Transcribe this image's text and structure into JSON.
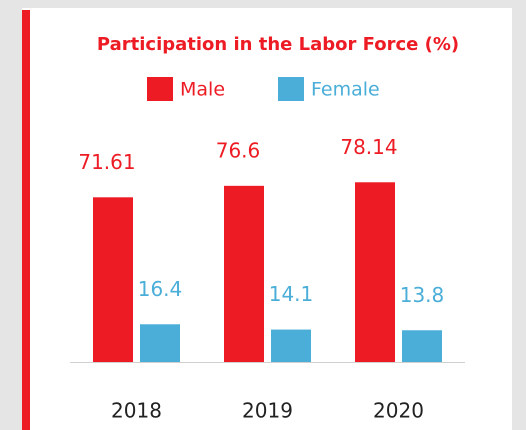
{
  "chart_data": {
    "type": "bar",
    "title": "Participation in the Labor Force (%)",
    "categories": [
      "2018",
      "2019",
      "2020"
    ],
    "series": [
      {
        "name": "Male",
        "color": "#ed1c24",
        "values": [
          71.61,
          76.6,
          78.14
        ]
      },
      {
        "name": "Female",
        "color": "#4aaed8",
        "values": [
          16.4,
          14.1,
          13.8
        ]
      }
    ]
  }
}
